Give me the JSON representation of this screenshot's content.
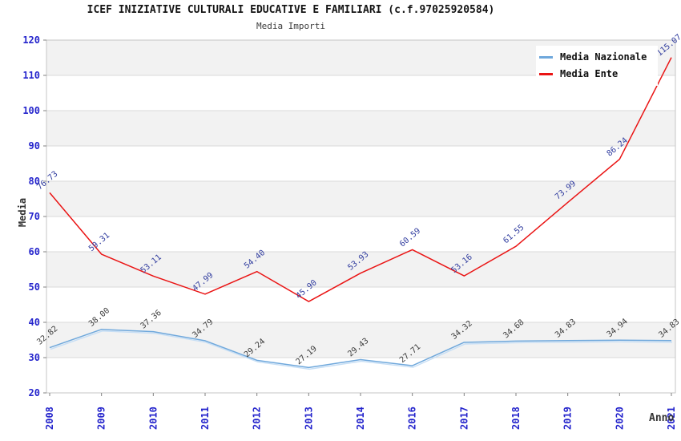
{
  "header": {
    "title": "ICEF INIZIATIVE CULTURALI EDUCATIVE E FAMILIARI (c.f.97025920584)",
    "subtitle": "Media Importi"
  },
  "chart_data": {
    "type": "line",
    "title": "ICEF INIZIATIVE CULTURALI EDUCATIVE E FAMILIARI (c.f.97025920584)",
    "subtitle": "Media Importi",
    "xlabel": "Anno",
    "ylabel": "Media",
    "x": [
      "2008",
      "2009",
      "2010",
      "2011",
      "2012",
      "2013",
      "2014",
      "2016",
      "2017",
      "2018",
      "2019",
      "2020",
      "2021"
    ],
    "series": [
      {
        "name": "Media Nazionale",
        "color": "#6fa8dc",
        "halo": "#c6def5",
        "label_color": "#3c3c3c",
        "values": [
          32.82,
          38.0,
          37.36,
          34.79,
          29.24,
          27.19,
          29.43,
          27.71,
          34.32,
          34.68,
          34.83,
          34.94,
          34.83
        ]
      },
      {
        "name": "Media Ente",
        "color": "#ea1414",
        "halo": "",
        "label_color": "#2f3b9e",
        "values": [
          76.73,
          59.31,
          53.11,
          47.99,
          54.4,
          45.9,
          53.93,
          60.59,
          53.16,
          61.55,
          73.99,
          86.24,
          115.07
        ]
      }
    ],
    "ylim": [
      20,
      120
    ],
    "ytick_step": 10,
    "yticks": [
      20,
      30,
      40,
      50,
      60,
      70,
      80,
      90,
      100,
      110,
      120
    ],
    "grid": true,
    "legend_position": "top-right",
    "label_decimals": 2,
    "colors": {
      "band": "#f2f2f2",
      "grid": "#dadada",
      "border": "#c6c6c6",
      "tick_label": "#2424cc",
      "axis_tick": "#808080",
      "background": "#ffffff"
    }
  }
}
